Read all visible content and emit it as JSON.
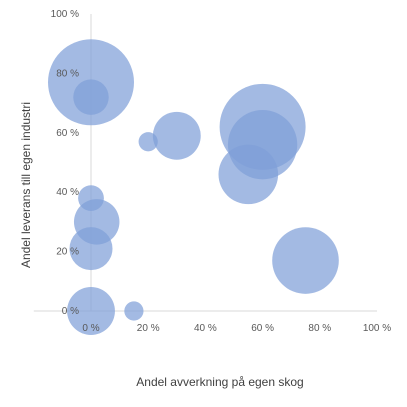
{
  "chart_data": {
    "type": "bubble",
    "title": "",
    "xlabel": "Andel avverkning på egen skog",
    "ylabel": "Andel leverans till egen industri",
    "xlim": [
      -20,
      100
    ],
    "ylim": [
      0,
      100
    ],
    "x_ticks": [
      0,
      20,
      40,
      60,
      80,
      100
    ],
    "y_ticks": [
      0,
      20,
      40,
      60,
      80,
      100
    ],
    "x_tick_labels": [
      "0 %",
      "20 %",
      "40 %",
      "60 %",
      "80 %",
      "100 %"
    ],
    "y_tick_labels": [
      "0 %",
      "20 %",
      "40 %",
      "60 %",
      "80 %",
      "100 %"
    ],
    "grid": false,
    "legend": "none",
    "bubble_color": "#7F9FD8",
    "series": [
      {
        "points": [
          {
            "x": 0,
            "y": 77,
            "size": 100
          },
          {
            "x": 0,
            "y": 72,
            "size": 17
          },
          {
            "x": 20,
            "y": 57,
            "size": 5
          },
          {
            "x": 30,
            "y": 59,
            "size": 31
          },
          {
            "x": 60,
            "y": 62,
            "size": 100
          },
          {
            "x": 60,
            "y": 56,
            "size": 65
          },
          {
            "x": 55,
            "y": 46,
            "size": 48
          },
          {
            "x": 75,
            "y": 17,
            "size": 60
          },
          {
            "x": 0,
            "y": 38,
            "size": 9
          },
          {
            "x": 2,
            "y": 30,
            "size": 28
          },
          {
            "x": 0,
            "y": 21,
            "size": 25
          },
          {
            "x": 0,
            "y": 0,
            "size": 31
          },
          {
            "x": 15,
            "y": 0,
            "size": 5
          }
        ]
      }
    ]
  }
}
